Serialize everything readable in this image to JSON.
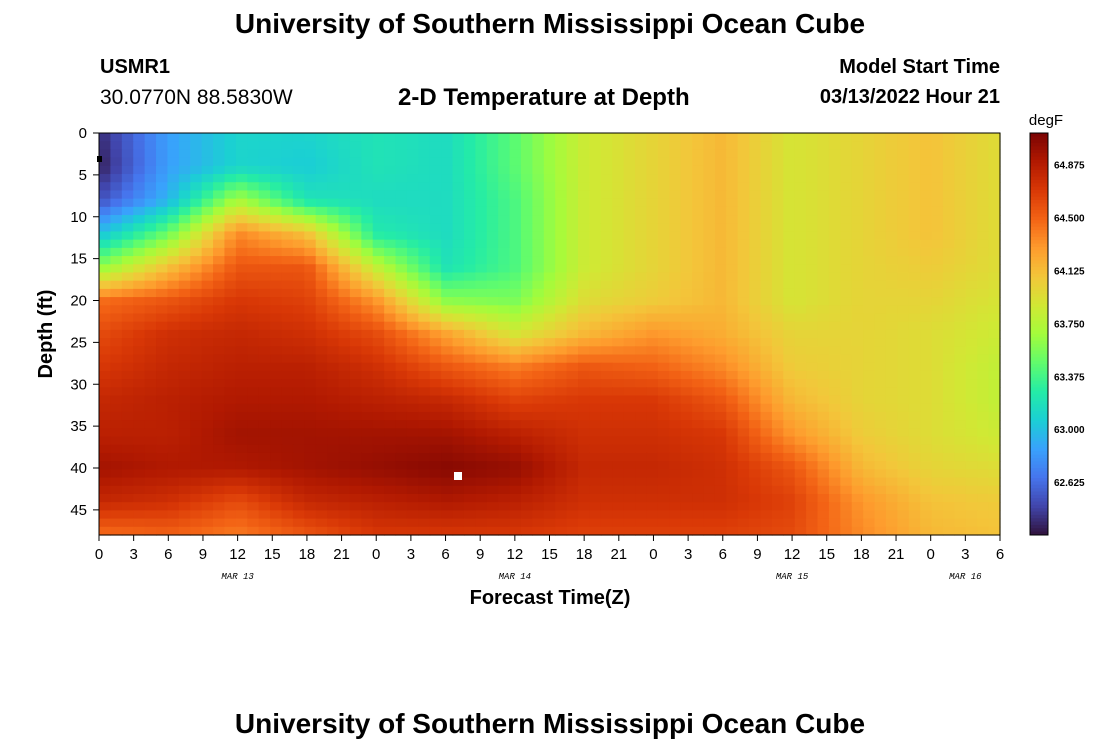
{
  "header": {
    "title": "University of Southern Mississippi Ocean Cube",
    "station": "USMR1",
    "coords": "30.0770N  88.5830W",
    "subtitle": "2-D Temperature at Depth",
    "model_start_label": "Model Start Time",
    "model_start_value": "03/13/2022 Hour 21"
  },
  "footer": {
    "title": "University of Southern Mississippi Ocean Cube"
  },
  "chart_data": {
    "type": "heatmap",
    "title": "2-D Temperature at Depth",
    "xlabel": "Forecast Time(Z)",
    "ylabel": "Depth (ft)",
    "x_ticks": [
      "0",
      "3",
      "6",
      "9",
      "12",
      "15",
      "18",
      "21",
      "0",
      "3",
      "6",
      "9",
      "12",
      "15",
      "18",
      "21",
      "0",
      "3",
      "6",
      "9",
      "12",
      "15",
      "18",
      "21",
      "0",
      "3",
      "6"
    ],
    "x_range_hours": [
      0,
      78
    ],
    "date_labels": [
      {
        "label": "MAR 13",
        "hour": 12
      },
      {
        "label": "MAR 14",
        "hour": 36
      },
      {
        "label": "MAR 15",
        "hour": 60
      },
      {
        "label": "MAR 16",
        "hour": 75
      }
    ],
    "y_ticks": [
      0,
      5,
      10,
      15,
      20,
      25,
      30,
      35,
      40,
      45
    ],
    "ylim": [
      0,
      48
    ],
    "y_inverted": true,
    "colorbar": {
      "unit": "degF",
      "range": [
        62.25,
        65.1
      ],
      "ticks": [
        "64.875",
        "64.500",
        "64.125",
        "63.750",
        "63.375",
        "63.000",
        "62.625"
      ],
      "colormap": [
        "#30123b",
        "#4145ab",
        "#4675ed",
        "#39a2fc",
        "#1bcfd4",
        "#24eca6",
        "#61fc6c",
        "#a4fc3b",
        "#d1e834",
        "#f3c63a",
        "#fe9b2d",
        "#f36315",
        "#d93806",
        "#b11901",
        "#7a0403"
      ]
    },
    "grid_time_hours": [
      0,
      6,
      12,
      18,
      24,
      30,
      36,
      42,
      48,
      54,
      60,
      66,
      72,
      78
    ],
    "grid_depth_ft": [
      0,
      4,
      8,
      12,
      16,
      20,
      24,
      28,
      32,
      36,
      40,
      44,
      48
    ],
    "grid_values_degF": [
      [
        62.35,
        62.85,
        63.1,
        63.1,
        63.2,
        63.15,
        63.45,
        63.85,
        64.0,
        64.15,
        63.9,
        64.0,
        64.1,
        63.95
      ],
      [
        62.3,
        62.85,
        63.1,
        63.05,
        63.2,
        63.15,
        63.45,
        63.85,
        64.0,
        64.15,
        63.9,
        64.0,
        64.1,
        63.95
      ],
      [
        62.5,
        62.95,
        63.7,
        63.2,
        63.15,
        63.15,
        63.4,
        63.85,
        64.0,
        64.15,
        63.9,
        64.0,
        64.1,
        63.95
      ],
      [
        63.0,
        63.5,
        64.35,
        64.1,
        63.25,
        63.15,
        63.4,
        63.85,
        64.0,
        64.15,
        63.9,
        64.0,
        64.1,
        63.95
      ],
      [
        63.6,
        64.1,
        64.55,
        64.55,
        63.8,
        63.2,
        63.4,
        63.85,
        64.0,
        64.15,
        63.9,
        64.0,
        64.05,
        63.95
      ],
      [
        64.45,
        64.55,
        64.7,
        64.65,
        64.3,
        63.6,
        63.55,
        63.95,
        64.05,
        64.15,
        63.9,
        64.0,
        64.0,
        63.9
      ],
      [
        64.6,
        64.75,
        64.8,
        64.75,
        64.6,
        64.25,
        63.9,
        64.15,
        64.3,
        64.2,
        64.0,
        64.0,
        63.95,
        63.85
      ],
      [
        64.7,
        64.8,
        64.85,
        64.85,
        64.75,
        64.55,
        64.4,
        64.55,
        64.5,
        64.35,
        64.05,
        64.0,
        63.95,
        63.8
      ],
      [
        64.8,
        64.85,
        64.9,
        64.9,
        64.85,
        64.8,
        64.65,
        64.7,
        64.7,
        64.55,
        64.15,
        64.0,
        63.95,
        63.8
      ],
      [
        64.85,
        64.85,
        64.95,
        64.95,
        64.95,
        64.95,
        64.85,
        64.75,
        64.75,
        64.7,
        64.3,
        64.05,
        63.95,
        63.85
      ],
      [
        64.95,
        64.9,
        64.9,
        64.95,
        65.0,
        65.05,
        65.0,
        64.8,
        64.8,
        64.75,
        64.55,
        64.15,
        64.0,
        63.95
      ],
      [
        64.8,
        64.75,
        64.6,
        64.8,
        64.85,
        64.9,
        64.85,
        64.75,
        64.75,
        64.75,
        64.65,
        64.3,
        64.1,
        64.05
      ],
      [
        64.45,
        64.5,
        64.4,
        64.55,
        64.7,
        64.7,
        64.7,
        64.65,
        64.65,
        64.65,
        64.6,
        64.35,
        64.15,
        64.1
      ]
    ]
  }
}
